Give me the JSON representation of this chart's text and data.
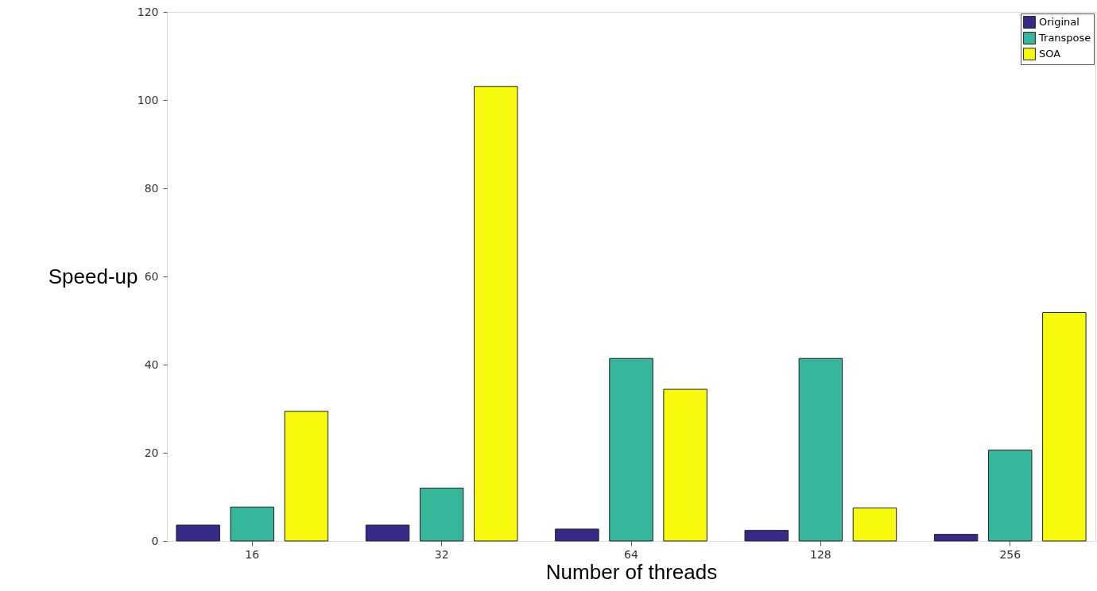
{
  "chart_data": {
    "type": "bar",
    "xlabel": "Number of threads",
    "ylabel": "Speed-up",
    "categories": [
      "16",
      "32",
      "64",
      "128",
      "256"
    ],
    "series": [
      {
        "name": "Original",
        "color": "#352a87",
        "values": [
          3.6,
          3.6,
          2.7,
          2.4,
          1.5
        ]
      },
      {
        "name": "Transpose",
        "color": "#36b69a",
        "values": [
          7.7,
          12.0,
          41.4,
          41.4,
          20.6
        ]
      },
      {
        "name": "SOA",
        "color": "#f8fa0d",
        "values": [
          29.4,
          103.1,
          34.4,
          7.5,
          51.8
        ]
      }
    ],
    "ylim": [
      0,
      120
    ],
    "yticks": [
      0,
      20,
      40,
      60,
      80,
      100,
      120
    ],
    "grid": false,
    "legend": "top right"
  }
}
